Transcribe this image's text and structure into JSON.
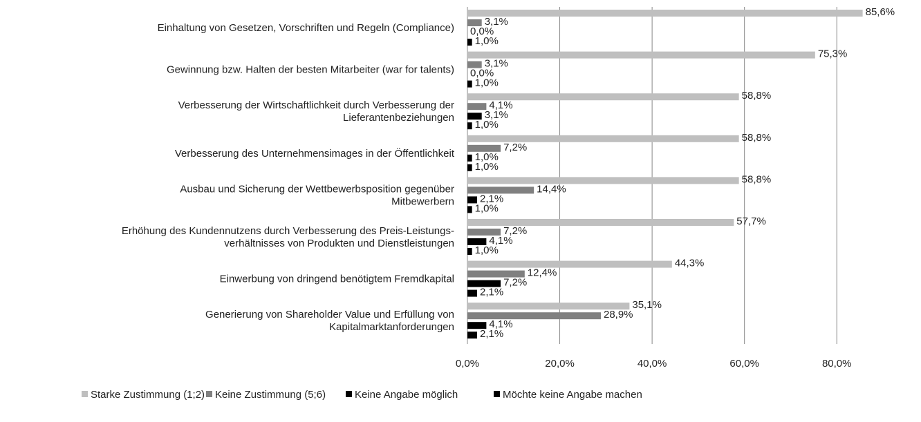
{
  "chart_data": {
    "type": "hbar",
    "categories": [
      "Einhaltung von Gesetzen, Vorschriften und Regeln (Compliance)",
      "Gewinnung bzw. Halten der besten Mitarbeiter (war for talents)",
      "Verbesserung der Wirtschaftlichkeit durch Verbesserung der\nLieferantenbeziehungen",
      "Verbesserung des Unternehmensimages  in der Öffentlichkeit",
      "Ausbau und Sicherung der Wettbewerbsposition gegenüber\nMitbewerbern",
      "Erhöhung des Kundennutzens durch Verbesserung des Preis-Leistungs-\nverhältnisses von Produkten und Dienstleistungen",
      "Einwerbung von dringend benötigtem Fremdkapital",
      "Generierung von Shareholder Value und Erfüllung von\nKapitalmarktanforderungen"
    ],
    "series": [
      {
        "name": "Starke Zustimmung (1;2)",
        "color": "#bfbfbf",
        "values": [
          85.6,
          75.3,
          58.8,
          58.8,
          58.8,
          57.7,
          44.3,
          35.1
        ],
        "value_labels": [
          "85,6%",
          "75,3%",
          "58,8%",
          "58,8%",
          "58,8%",
          "57,7%",
          "44,3%",
          "35,1%"
        ]
      },
      {
        "name": "Keine Zustimmung (5;6)",
        "color": "#808080",
        "values": [
          3.1,
          3.1,
          4.1,
          7.2,
          14.4,
          7.2,
          12.4,
          28.9
        ],
        "value_labels": [
          "3,1%",
          "3,1%",
          "4,1%",
          "7,2%",
          "14,4%",
          "7,2%",
          "12,4%",
          "28,9%"
        ]
      },
      {
        "name": "Keine Angabe möglich",
        "color": "#000000",
        "values": [
          0.0,
          0.0,
          3.1,
          1.0,
          2.1,
          4.1,
          7.2,
          4.1
        ],
        "value_labels": [
          "0,0%",
          "0,0%",
          "3,1%",
          "1,0%",
          "2,1%",
          "4,1%",
          "7,2%",
          "4,1%"
        ]
      },
      {
        "name": "Möchte keine Angabe machen",
        "color": "#000000",
        "values": [
          1.0,
          1.0,
          1.0,
          1.0,
          1.0,
          1.0,
          2.1,
          2.1
        ],
        "value_labels": [
          "1,0%",
          "1,0%",
          "1,0%",
          "1,0%",
          "1,0%",
          "1,0%",
          "2,1%",
          "2,1%"
        ]
      }
    ],
    "xlim": [
      0,
      90
    ],
    "xticks": [
      {
        "value": 0,
        "label": "0,0%"
      },
      {
        "value": 20,
        "label": "20,0%"
      },
      {
        "value": 40,
        "label": "40,0%"
      },
      {
        "value": 60,
        "label": "60,0%"
      },
      {
        "value": 80,
        "label": "80,0%"
      }
    ],
    "grid": true,
    "legend": "bottom"
  }
}
